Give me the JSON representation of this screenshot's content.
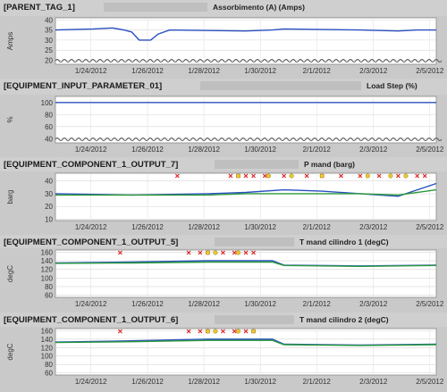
{
  "x_dates": [
    "1/24/2012",
    "1/26/2012",
    "1/28/2012",
    "1/30/2012",
    "2/1/2012",
    "2/3/2012",
    "2/5/2012"
  ],
  "chart_data": [
    {
      "type": "line",
      "tag": "[PARENT_TAG_1]",
      "title": "Assorbimento (A) (Amps)",
      "ylabel": "Amps",
      "yticks": [
        20.0,
        25.0,
        30.0,
        35.0,
        40.0
      ],
      "ylim": [
        18,
        41
      ],
      "axis_break": true,
      "series": [
        {
          "color": "#2a4fc0",
          "x": [
            0,
            0.1,
            0.15,
            0.18,
            0.2,
            0.22,
            0.25,
            0.27,
            0.3,
            0.5,
            0.57,
            0.6,
            0.8,
            0.9,
            0.95,
            1
          ],
          "y": [
            35,
            35.5,
            36,
            35,
            34,
            30,
            30,
            33,
            35,
            34.5,
            35,
            35.5,
            35,
            34.5,
            35,
            35
          ]
        }
      ],
      "markers_red": [],
      "markers_yellow": []
    },
    {
      "type": "line",
      "tag": "[EQUIPMENT_INPUT_PARAMETER_01]",
      "title": "Load Step (%)",
      "ylabel": "%",
      "yticks": [
        40,
        60,
        80,
        100
      ],
      "ylim": [
        33,
        110
      ],
      "axis_break": true,
      "series": [
        {
          "color": "#2a4fc0",
          "x": [
            0,
            1
          ],
          "y": [
            100,
            100
          ]
        }
      ],
      "markers_red": [],
      "markers_yellow": []
    },
    {
      "type": "line",
      "tag": "[EQUIPMENT_COMPONENT_1_OUTPUT_7]",
      "title": "P mand (barg)",
      "ylabel": "barg",
      "yticks": [
        10.0,
        20.0,
        30.0,
        40.0
      ],
      "ylim": [
        9,
        46
      ],
      "axis_break": false,
      "series": [
        {
          "color": "#2a4fc0",
          "x": [
            0,
            0.2,
            0.4,
            0.5,
            0.6,
            0.7,
            0.8,
            0.9,
            1
          ],
          "y": [
            30,
            29,
            30,
            31,
            33,
            32,
            30,
            28,
            38
          ]
        },
        {
          "color": "#2a9a3a",
          "x": [
            0,
            0.2,
            0.4,
            0.5,
            0.6,
            0.7,
            0.8,
            0.9,
            1
          ],
          "y": [
            29,
            29,
            29,
            30,
            30,
            30,
            30,
            29,
            33
          ]
        }
      ],
      "markers_red": [
        0.32,
        0.46,
        0.48,
        0.5,
        0.52,
        0.55,
        0.6,
        0.66,
        0.7,
        0.75,
        0.8,
        0.85,
        0.9,
        0.95,
        0.97
      ],
      "markers_yellow": [
        0.48,
        0.56,
        0.62,
        0.7,
        0.82,
        0.88,
        0.92
      ]
    },
    {
      "type": "line",
      "tag": "[EQUIPMENT_COMPONENT_1_OUTPUT_5]",
      "title": "T mand cilindro 1 (degC)",
      "ylabel": "degC",
      "yticks": [
        60,
        80,
        100,
        120,
        140,
        160
      ],
      "ylim": [
        55,
        165
      ],
      "axis_break": false,
      "series": [
        {
          "color": "#2a4fc0",
          "x": [
            0,
            0.2,
            0.4,
            0.57,
            0.6,
            0.8,
            1
          ],
          "y": [
            135,
            137,
            140,
            140,
            130,
            128,
            130
          ]
        },
        {
          "color": "#2a9a3a",
          "x": [
            0,
            0.2,
            0.4,
            0.57,
            0.6,
            0.8,
            1
          ],
          "y": [
            134,
            135,
            137,
            137,
            129,
            127,
            129
          ]
        }
      ],
      "markers_red": [
        0.17,
        0.35,
        0.38,
        0.4,
        0.44,
        0.47,
        0.5,
        0.52
      ],
      "markers_yellow": [
        0.4,
        0.42,
        0.48
      ]
    },
    {
      "type": "line",
      "tag": "[EQUIPMENT_COMPONENT_1_OUTPUT_6]",
      "title": "T mand cilindro 2 (degC)",
      "ylabel": "degC",
      "yticks": [
        60,
        80,
        100,
        120,
        140,
        160
      ],
      "ylim": [
        55,
        165
      ],
      "axis_break": false,
      "series": [
        {
          "color": "#2a4fc0",
          "x": [
            0,
            0.2,
            0.4,
            0.57,
            0.6,
            0.8,
            1
          ],
          "y": [
            133,
            136,
            140,
            140,
            128,
            126,
            128
          ]
        },
        {
          "color": "#2a9a3a",
          "x": [
            0,
            0.2,
            0.4,
            0.57,
            0.6,
            0.8,
            1
          ],
          "y": [
            132,
            134,
            137,
            137,
            127,
            125,
            127
          ]
        }
      ],
      "markers_red": [
        0.17,
        0.35,
        0.38,
        0.4,
        0.44,
        0.47,
        0.5,
        0.52
      ],
      "markers_yellow": [
        0.4,
        0.42,
        0.48,
        0.52
      ]
    }
  ]
}
